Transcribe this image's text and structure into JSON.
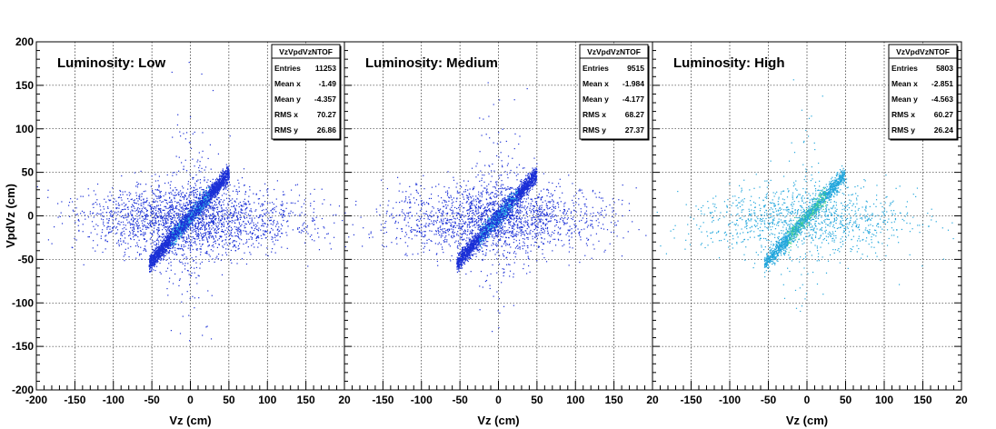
{
  "chart_data": [
    {
      "type": "scatter",
      "title": "Luminosity: Low",
      "xlabel": "Vz (cm)",
      "ylabel": "VpdVz (cm)",
      "xlim": [
        -200,
        200
      ],
      "ylim": [
        -200,
        200
      ],
      "x_ticks": [
        "-200",
        "-150",
        "-100",
        "-50",
        "0",
        "50",
        "100",
        "150",
        "20"
      ],
      "y_ticks": [
        "-200",
        "-150",
        "-100",
        "-50",
        "0",
        "50",
        "100",
        "150",
        "200"
      ],
      "grid": true,
      "point_color": "#1a2fd6",
      "core_color": "#2bb8e8",
      "stats": {
        "name": "VzVpdVzNTOF",
        "rows": [
          {
            "label": "Entries",
            "value": "11253"
          },
          {
            "label": "Mean x",
            "value": "-1.49"
          },
          {
            "label": "Mean y",
            "value": "-4.357"
          },
          {
            "label": "RMS x",
            "value": "70.27"
          },
          {
            "label": "RMS y",
            "value": "26.86"
          }
        ]
      }
    },
    {
      "type": "scatter",
      "title": "Luminosity: Medium",
      "xlabel": "Vz (cm)",
      "ylabel": "",
      "xlim": [
        -200,
        200
      ],
      "ylim": [
        -200,
        200
      ],
      "x_ticks": [
        "",
        "-150",
        "-100",
        "-50",
        "0",
        "50",
        "100",
        "150",
        "20"
      ],
      "grid": true,
      "point_color": "#1a2fd6",
      "core_color": "#2bb8e8",
      "stats": {
        "name": "VzVpdVzNTOF",
        "rows": [
          {
            "label": "Entries",
            "value": "9515"
          },
          {
            "label": "Mean x",
            "value": "-1.984"
          },
          {
            "label": "Mean y",
            "value": "-4.177"
          },
          {
            "label": "RMS x",
            "value": "68.27"
          },
          {
            "label": "RMS y",
            "value": "27.37"
          }
        ]
      }
    },
    {
      "type": "scatter",
      "title": "Luminosity: High",
      "xlabel": "Vz (cm)",
      "ylabel": "",
      "xlim": [
        -200,
        200
      ],
      "ylim": [
        -200,
        200
      ],
      "x_ticks": [
        "",
        "-150",
        "-100",
        "-50",
        "0",
        "50",
        "100",
        "150",
        "20"
      ],
      "grid": true,
      "point_color": "#22a6dc",
      "core_color": "#3fd08a",
      "stats": {
        "name": "VzVpdVzNTOF",
        "rows": [
          {
            "label": "Entries",
            "value": "5803"
          },
          {
            "label": "Mean x",
            "value": "-2.851"
          },
          {
            "label": "Mean y",
            "value": "-4.563"
          },
          {
            "label": "RMS x",
            "value": "60.27"
          },
          {
            "label": "RMS y",
            "value": "26.24"
          }
        ]
      }
    }
  ]
}
